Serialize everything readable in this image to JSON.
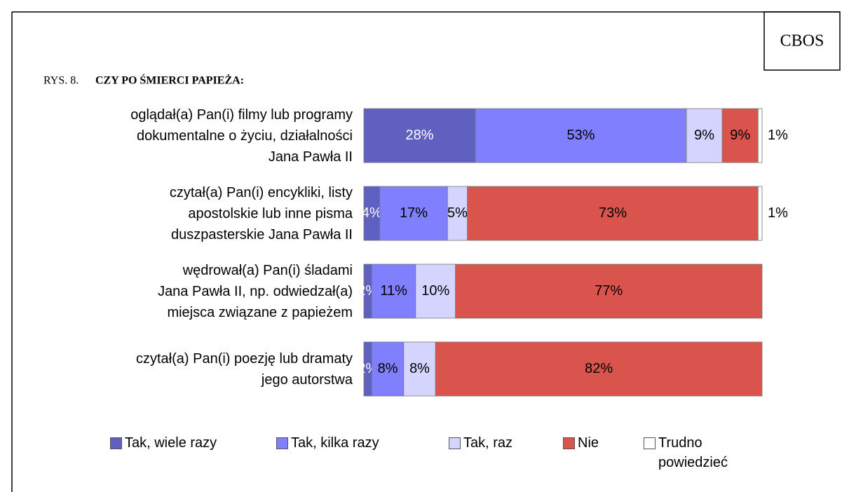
{
  "chart_data": {
    "type": "stacked_bar_horizontal",
    "source": "CBOS",
    "figure_label": "RYS. 8.",
    "title": "CZY PO ŚMIERCI PAPIEŻA:",
    "categories": [
      "oglądał(a) Pan(i) filmy lub programy\ndokumentalne o życiu, działalności\nJana Pawła II",
      "czytał(a) Pan(i) encykliki, listy\napostolskie lub inne pisma\nduszpasterskie Jana Pawła II",
      "wędrował(a) Pan(i) śladami\nJana Pawła II, np. odwiedzał(a)\nmiejsca związane z papieżem",
      "czytał(a) Pan(i) poezję lub dramaty\njego autorstwa"
    ],
    "xlim": [
      0,
      100
    ],
    "series": [
      {
        "name": "Tak, wiele razy",
        "color": "#6060c0",
        "label_color": "#ffffff",
        "values": [
          28,
          4,
          2,
          2
        ],
        "value_labels": [
          "28%",
          "4%",
          "2%",
          "2%"
        ]
      },
      {
        "name": "Tak, kilka razy",
        "color": "#8080ff",
        "label_color": "#000000",
        "values": [
          53,
          17,
          11,
          8
        ],
        "value_labels": [
          "53%",
          "17%",
          "11%",
          "8%"
        ]
      },
      {
        "name": "Tak, raz",
        "color": "#d4d4ff",
        "label_color": "#000000",
        "values": [
          9,
          5,
          10,
          8
        ],
        "value_labels": [
          "9%",
          "5%",
          "10%",
          "8%"
        ]
      },
      {
        "name": "Nie",
        "color": "#d9544c",
        "label_color": "#000000",
        "values": [
          9,
          73,
          77,
          82
        ],
        "value_labels": [
          "9%",
          "73%",
          "77%",
          "82%"
        ]
      },
      {
        "name": "Trudno powiedzieć",
        "color": "#ffffff",
        "label_color": "#000000",
        "values": [
          1,
          1,
          null,
          null
        ],
        "value_labels": [
          "1%",
          "1%",
          null,
          null
        ]
      }
    ]
  }
}
